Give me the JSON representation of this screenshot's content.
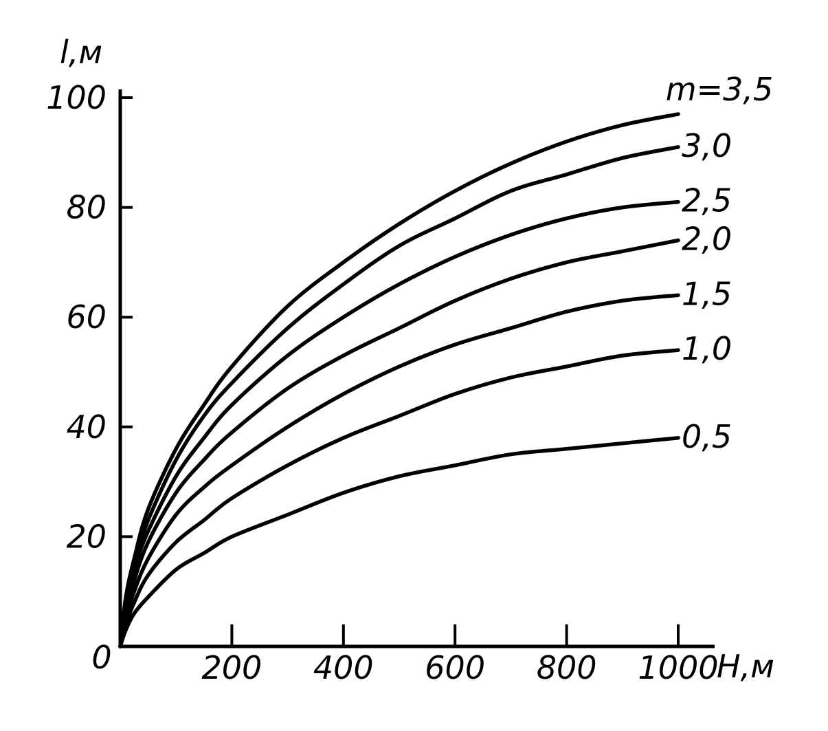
{
  "chart_data": {
    "type": "line",
    "title": "",
    "xlabel": "H,м",
    "ylabel": "l,м",
    "xlim": [
      0,
      1000
    ],
    "ylim": [
      0,
      100
    ],
    "origin_label": "0",
    "x_ticks": [
      200,
      400,
      600,
      800,
      1000
    ],
    "y_ticks": [
      20,
      40,
      60,
      80,
      100
    ],
    "grid": false,
    "legend": "none",
    "x": [
      0,
      10,
      25,
      50,
      100,
      150,
      200,
      300,
      400,
      500,
      600,
      700,
      800,
      900,
      1000
    ],
    "series": [
      {
        "name": "m=3,5",
        "values": [
          0,
          9,
          16,
          25,
          36,
          44,
          51,
          62,
          70,
          77,
          83,
          88,
          92,
          95,
          97
        ]
      },
      {
        "name": "3,0",
        "values": [
          0,
          8,
          15,
          23,
          34,
          42,
          48,
          58,
          66,
          73,
          78,
          83,
          86,
          89,
          91
        ]
      },
      {
        "name": "2,5",
        "values": [
          0,
          7,
          14,
          21,
          31,
          38,
          44,
          53,
          60,
          66,
          71,
          75,
          78,
          80,
          81
        ]
      },
      {
        "name": "2,0",
        "values": [
          0,
          6,
          12,
          19,
          28,
          34,
          39,
          47,
          53,
          58,
          63,
          67,
          70,
          72,
          74
        ]
      },
      {
        "name": "1,5",
        "values": [
          0,
          5,
          10,
          16,
          24,
          29,
          33,
          40,
          46,
          51,
          55,
          58,
          61,
          63,
          64
        ]
      },
      {
        "name": "1,0",
        "values": [
          0,
          4,
          8,
          13,
          19,
          23,
          27,
          33,
          38,
          42,
          46,
          49,
          51,
          53,
          54
        ]
      },
      {
        "name": "0,5",
        "values": [
          0,
          3,
          6,
          9,
          14,
          17,
          20,
          24,
          28,
          31,
          33,
          35,
          36,
          37,
          38
        ]
      }
    ]
  }
}
